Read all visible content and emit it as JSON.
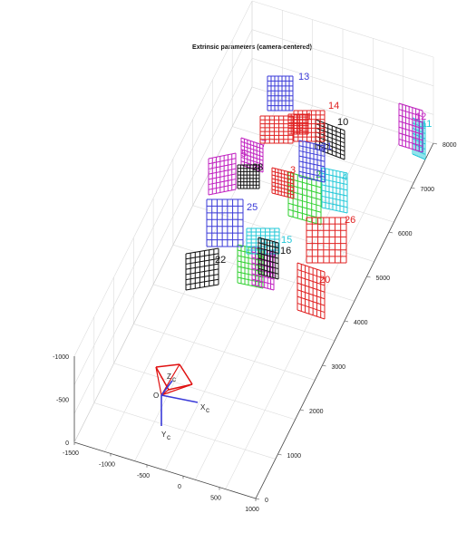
{
  "chart_data": {
    "type": "3d-scatter",
    "title": "Extrinsic parameters (camera-centered)",
    "xlabel": "",
    "ylabel": "",
    "zlabel": "",
    "grid": true,
    "axis_x": {
      "ticks": [
        -1500,
        -1000,
        -500,
        0,
        500,
        1000
      ],
      "labels": [
        "-1500",
        "-1000",
        "-500",
        "0",
        "500",
        "1000"
      ]
    },
    "axis_y": {
      "ticks": [
        -1000,
        -500,
        0
      ],
      "labels": [
        "-1000",
        "-500",
        "0"
      ]
    },
    "axis_z": {
      "ticks": [
        0,
        1000,
        2000,
        3000,
        4000,
        5000,
        6000,
        7000,
        8000
      ],
      "labels": [
        "0",
        "1000",
        "2000",
        "3000",
        "4000",
        "5000",
        "6000",
        "7000",
        "8000"
      ]
    },
    "camera": {
      "labels": {
        "origin": "O",
        "x": "X",
        "x_sub": "c",
        "y": "Y",
        "y_sub": "c",
        "z": "Z",
        "z_sub": "c"
      },
      "frame_color": "#e01010",
      "axis_color": "#3a3ad8"
    },
    "boards": [
      {
        "label": "1",
        "color": "#e02020"
      },
      {
        "label": "2",
        "color": "#30d030"
      },
      {
        "label": "3",
        "color": "#e02020"
      },
      {
        "label": "4",
        "color": "#22c8d8"
      },
      {
        "label": "5",
        "color": "#c020c0"
      },
      {
        "label": "6",
        "color": "#30d030"
      },
      {
        "label": "7",
        "color": "#c020c0"
      },
      {
        "label": "8",
        "color": "#c020c0"
      },
      {
        "label": "9",
        "color": "#e02020"
      },
      {
        "label": "10",
        "color": "#111111"
      },
      {
        "label": "11",
        "color": "#22c8d8"
      },
      {
        "label": "12",
        "color": "#c020c0"
      },
      {
        "label": "13",
        "color": "#3a3ad8"
      },
      {
        "label": "14",
        "color": "#e02020"
      },
      {
        "label": "15",
        "color": "#22c8d8"
      },
      {
        "label": "16",
        "color": "#111111"
      },
      {
        "label": "20",
        "color": "#e02020"
      },
      {
        "label": "21",
        "color": "#3a3ad8"
      },
      {
        "label": "22",
        "color": "#111111"
      },
      {
        "label": "25",
        "color": "#3a3ad8"
      },
      {
        "label": "26",
        "color": "#e02020"
      },
      {
        "label": "28",
        "color": "#111111"
      }
    ]
  }
}
